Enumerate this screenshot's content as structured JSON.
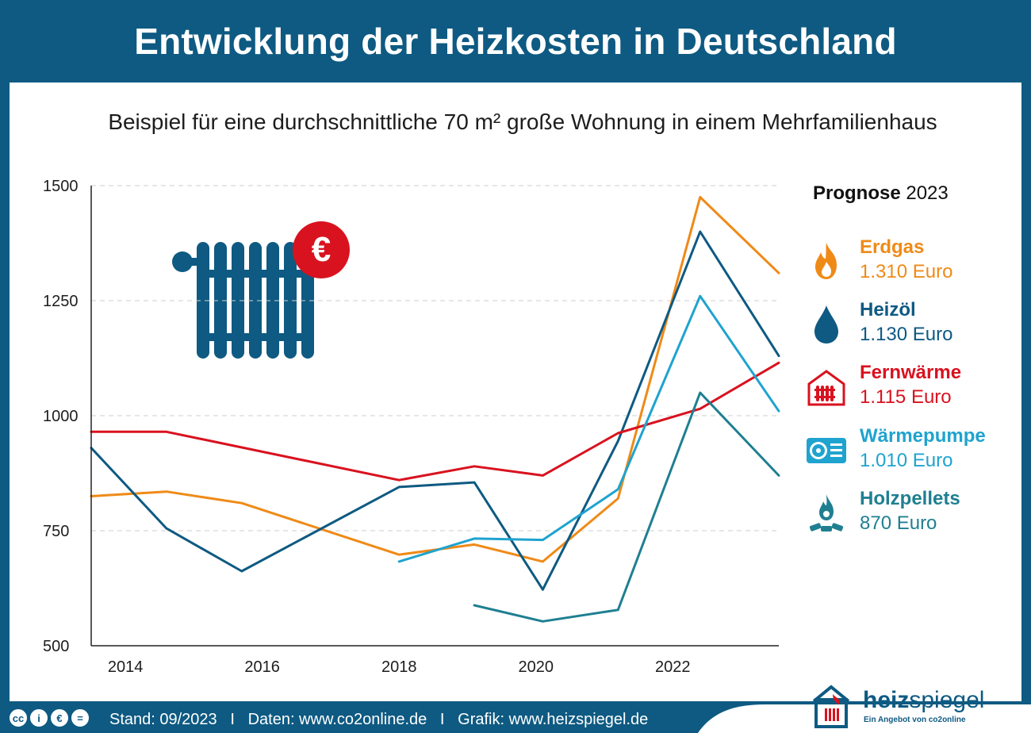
{
  "title": "Entwicklung der Heizkosten in Deutschland",
  "subtitle": "Beispiel für eine durchschnittliche 70 m² große Wohnung in einem Mehrfamilienhaus",
  "legend": {
    "title_bold": "Prognose",
    "title_year": "2023",
    "items": [
      {
        "name": "Erdgas",
        "value": "1.310 Euro",
        "color": "#ef8a17",
        "icon": "flame-icon"
      },
      {
        "name": "Heizöl",
        "value": "1.130 Euro",
        "color": "#0e5a82",
        "icon": "drop-icon"
      },
      {
        "name": "Fernwärme",
        "value": "1.115 Euro",
        "color": "#d9121f",
        "icon": "district-heating-icon"
      },
      {
        "name": "Wärmepumpe",
        "value": "1.010 Euro",
        "color": "#1fa3cf",
        "icon": "heat-pump-icon"
      },
      {
        "name": "Holzpellets",
        "value": "870 Euro",
        "color": "#1f7f91",
        "icon": "wood-fire-icon"
      }
    ]
  },
  "chart_data": {
    "type": "line",
    "ylim": [
      500,
      1500
    ],
    "yticks": [
      "500",
      "750",
      "1000",
      "1250",
      "1500"
    ],
    "xlim": [
      2013.5,
      2023.55
    ],
    "xticks": [
      "2014",
      "2016",
      "2018",
      "2020",
      "2022"
    ],
    "grid": "horizontal dashed",
    "legend_position": "right",
    "series": [
      {
        "name": "Erdgas",
        "color": "#ef8a17",
        "points": [
          [
            2013.5,
            825
          ],
          [
            2014.6,
            835
          ],
          [
            2015.7,
            810
          ],
          [
            2018.0,
            698
          ],
          [
            2019.1,
            720
          ],
          [
            2020.1,
            683
          ],
          [
            2021.2,
            820
          ],
          [
            2022.4,
            1475
          ],
          [
            2023.55,
            1310
          ]
        ]
      },
      {
        "name": "Heizöl",
        "color": "#0e5a82",
        "points": [
          [
            2013.5,
            930
          ],
          [
            2014.6,
            755
          ],
          [
            2015.7,
            662
          ],
          [
            2018.0,
            845
          ],
          [
            2019.1,
            855
          ],
          [
            2020.1,
            622
          ],
          [
            2021.2,
            945
          ],
          [
            2022.4,
            1400
          ],
          [
            2023.55,
            1130
          ]
        ]
      },
      {
        "name": "Fernwärme",
        "color": "#d9121f",
        "points": [
          [
            2013.5,
            965
          ],
          [
            2014.6,
            965
          ],
          [
            2018.0,
            860
          ],
          [
            2019.1,
            890
          ],
          [
            2020.1,
            870
          ],
          [
            2021.2,
            962
          ],
          [
            2022.4,
            1015
          ],
          [
            2023.55,
            1115
          ]
        ]
      },
      {
        "name": "Wärmepumpe",
        "color": "#1fa3cf",
        "points": [
          [
            2018.0,
            683
          ],
          [
            2019.1,
            733
          ],
          [
            2020.1,
            730
          ],
          [
            2021.2,
            840
          ],
          [
            2022.4,
            1260
          ],
          [
            2023.55,
            1010
          ]
        ]
      },
      {
        "name": "Holzpellets",
        "color": "#1f7f91",
        "points": [
          [
            2019.1,
            588
          ],
          [
            2020.1,
            553
          ],
          [
            2021.2,
            578
          ],
          [
            2022.4,
            1050
          ],
          [
            2023.55,
            870
          ]
        ]
      }
    ]
  },
  "footer": {
    "text": "Stand: 09/2023   I   Daten: www.co2online.de   I   Grafik: www.heizspiegel.de",
    "cc": [
      "cc",
      "i",
      "€",
      "="
    ]
  },
  "brand": {
    "name_bold": "heiz",
    "name_light": "spiegel",
    "tagline": "Ein Angebot von co2online"
  }
}
